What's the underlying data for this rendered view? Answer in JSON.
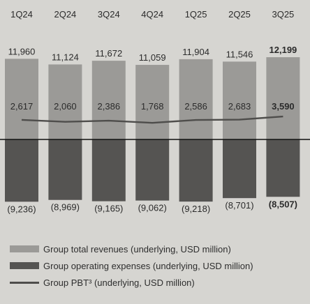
{
  "chart_data": {
    "type": "bar",
    "categories": [
      "1Q24",
      "2Q24",
      "3Q24",
      "4Q24",
      "1Q25",
      "2Q25",
      "3Q25"
    ],
    "series": [
      {
        "name": "Group total revenues (underlying, USD million)",
        "kind": "bar-positive",
        "values": [
          11960,
          11124,
          11672,
          11059,
          11904,
          11546,
          12199
        ],
        "labels": [
          "11,960",
          "11,124",
          "11,672",
          "11,059",
          "11,904",
          "11,546",
          "12,199"
        ]
      },
      {
        "name": "Group operating expenses (underlying, USD million)",
        "kind": "bar-negative",
        "values": [
          -9236,
          -8969,
          -9165,
          -9062,
          -9218,
          -8701,
          -8507
        ],
        "labels": [
          "(9,236)",
          "(8,969)",
          "(9,165)",
          "(9,062)",
          "(9,218)",
          "(8,701)",
          "(8,507)"
        ]
      },
      {
        "name": "Group PBT³ (underlying, USD million)",
        "kind": "line",
        "values": [
          2617,
          2060,
          2386,
          1768,
          2586,
          2683,
          3590
        ],
        "labels": [
          "2,617",
          "2,060",
          "2,386",
          "1,768",
          "2,586",
          "2,683",
          "3,590"
        ]
      }
    ],
    "highlight_index": 6,
    "colors": {
      "background": "#d6d5d1",
      "revenue_bar": "#9b9a97",
      "expense_bar": "#555452",
      "pbt_line": "#4e4d4b",
      "axis": "#111111",
      "text": "#2b2b2b"
    }
  }
}
